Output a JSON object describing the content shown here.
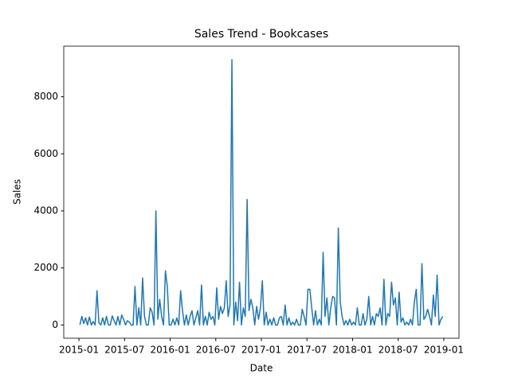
{
  "chart_data": {
    "type": "line",
    "title": "Sales Trend - Bookcases",
    "x_label": "Date",
    "y_label": "Sales",
    "x": [
      "2015-01",
      "2015-01",
      "2015-01",
      "2015-01",
      "2015-02",
      "2015-02",
      "2015-02",
      "2015-02",
      "2015-03",
      "2015-03",
      "2015-03",
      "2015-03",
      "2015-04",
      "2015-04",
      "2015-04",
      "2015-04",
      "2015-05",
      "2015-05",
      "2015-05",
      "2015-05",
      "2015-06",
      "2015-06",
      "2015-06",
      "2015-06",
      "2015-07",
      "2015-07",
      "2015-07",
      "2015-07",
      "2015-08",
      "2015-08",
      "2015-08",
      "2015-08",
      "2015-09",
      "2015-09",
      "2015-09",
      "2015-09",
      "2015-10",
      "2015-10",
      "2015-10",
      "2015-10",
      "2015-11",
      "2015-11",
      "2015-11",
      "2015-11",
      "2015-12",
      "2015-12",
      "2015-12",
      "2015-12",
      "2016-01",
      "2016-01",
      "2016-01",
      "2016-01",
      "2016-02",
      "2016-02",
      "2016-02",
      "2016-02",
      "2016-03",
      "2016-03",
      "2016-03",
      "2016-03",
      "2016-04",
      "2016-04",
      "2016-04",
      "2016-04",
      "2016-05",
      "2016-05",
      "2016-05",
      "2016-05",
      "2016-06",
      "2016-06",
      "2016-06",
      "2016-06",
      "2016-07",
      "2016-07",
      "2016-07",
      "2016-07",
      "2016-08",
      "2016-08",
      "2016-08",
      "2016-08",
      "2016-09",
      "2016-09",
      "2016-09",
      "2016-09",
      "2016-10",
      "2016-10",
      "2016-10",
      "2016-10",
      "2016-11",
      "2016-11",
      "2016-11",
      "2016-11",
      "2016-12",
      "2016-12",
      "2016-12",
      "2016-12",
      "2017-01",
      "2017-01",
      "2017-01",
      "2017-01",
      "2017-02",
      "2017-02",
      "2017-02",
      "2017-02",
      "2017-03",
      "2017-03",
      "2017-03",
      "2017-03",
      "2017-04",
      "2017-04",
      "2017-04",
      "2017-04",
      "2017-05",
      "2017-05",
      "2017-05",
      "2017-05",
      "2017-06",
      "2017-06",
      "2017-06",
      "2017-06",
      "2017-07",
      "2017-07",
      "2017-07",
      "2017-07",
      "2017-08",
      "2017-08",
      "2017-08",
      "2017-08",
      "2017-09",
      "2017-09",
      "2017-09",
      "2017-09",
      "2017-10",
      "2017-10",
      "2017-10",
      "2017-10",
      "2017-11",
      "2017-11",
      "2017-11",
      "2017-11",
      "2017-12",
      "2017-12",
      "2017-12",
      "2017-12",
      "2018-01",
      "2018-01",
      "2018-01",
      "2018-01",
      "2018-02",
      "2018-02",
      "2018-02",
      "2018-02",
      "2018-03",
      "2018-03",
      "2018-03",
      "2018-03",
      "2018-04",
      "2018-04",
      "2018-04",
      "2018-04",
      "2018-05",
      "2018-05",
      "2018-05",
      "2018-05",
      "2018-06",
      "2018-06",
      "2018-06",
      "2018-06",
      "2018-07",
      "2018-07",
      "2018-07",
      "2018-07",
      "2018-08",
      "2018-08",
      "2018-08",
      "2018-08",
      "2018-09",
      "2018-09",
      "2018-09",
      "2018-09",
      "2018-10",
      "2018-10",
      "2018-10",
      "2018-10",
      "2018-11",
      "2018-11",
      "2018-11",
      "2018-11",
      "2018-12",
      "2018-12",
      "2018-12",
      "2018-12"
    ],
    "series": [
      {
        "name": "Sales",
        "color": "#1f77b4",
        "values": [
          0,
          300,
          50,
          250,
          0,
          280,
          0,
          120,
          0,
          1200,
          80,
          0,
          250,
          0,
          300,
          0,
          0,
          320,
          150,
          0,
          300,
          0,
          350,
          200,
          0,
          150,
          100,
          0,
          0,
          1350,
          0,
          600,
          0,
          1650,
          300,
          0,
          0,
          600,
          450,
          0,
          4000,
          200,
          900,
          300,
          0,
          1900,
          1350,
          0,
          0,
          200,
          0,
          250,
          0,
          1200,
          500,
          0,
          350,
          0,
          300,
          500,
          0,
          250,
          500,
          0,
          1400,
          0,
          300,
          0,
          450,
          200,
          300,
          0,
          1300,
          200,
          650,
          400,
          600,
          1550,
          300,
          700,
          9300,
          0,
          800,
          150,
          1500,
          0,
          600,
          300,
          4400,
          500,
          900,
          600,
          0,
          650,
          200,
          600,
          1550,
          0,
          450,
          0,
          200,
          0,
          250,
          0,
          0,
          250,
          300,
          0,
          700,
          0,
          250,
          0,
          100,
          0,
          200,
          0,
          0,
          550,
          300,
          0,
          1250,
          1250,
          600,
          0,
          500,
          0,
          200,
          0,
          2550,
          300,
          950,
          0,
          600,
          1000,
          950,
          0,
          3400,
          800,
          300,
          0,
          150,
          0,
          200,
          0,
          100,
          0,
          600,
          0,
          0,
          400,
          0,
          200,
          1000,
          0,
          300,
          0,
          400,
          300,
          600,
          0,
          1600,
          0,
          400,
          300,
          1500,
          700,
          950,
          0,
          1150,
          100,
          250,
          0,
          100,
          0,
          200,
          0,
          800,
          1250,
          0,
          0,
          2150,
          200,
          300,
          550,
          300,
          0,
          1050,
          300,
          1750,
          0,
          200,
          300
        ]
      }
    ],
    "xlim": [
      "2014-11",
      "2019-03"
    ],
    "xticks": [
      "2015-01",
      "2015-07",
      "2016-01",
      "2016-07",
      "2017-01",
      "2017-07",
      "2018-01",
      "2018-07",
      "2019-01"
    ],
    "ylim": [
      -465,
      9775
    ],
    "yticks": [
      0,
      2000,
      4000,
      6000,
      8000
    ],
    "grid": false
  }
}
